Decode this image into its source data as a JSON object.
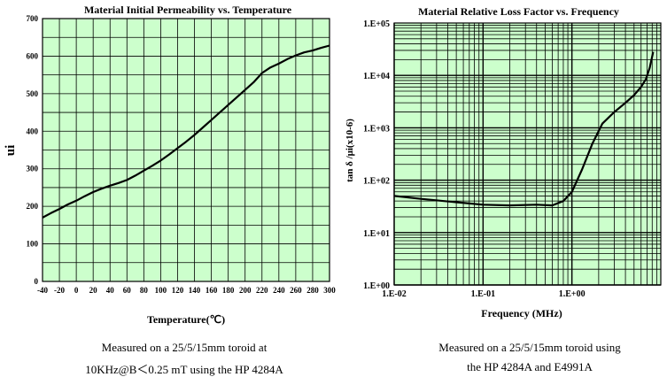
{
  "chart_data": [
    {
      "type": "line",
      "title": "Material Initial Permeability vs. Temperature",
      "xlabel": "Temperature(℃)",
      "ylabel": "ui",
      "xlim": [
        -40,
        300
      ],
      "ylim": [
        0,
        700
      ],
      "xticks": [
        -40,
        -20,
        0,
        20,
        40,
        60,
        80,
        100,
        120,
        140,
        160,
        180,
        200,
        220,
        240,
        260,
        280,
        300
      ],
      "yticks": [
        0,
        100,
        200,
        300,
        400,
        500,
        600,
        700
      ],
      "grid": true,
      "background": "#ccffcc",
      "line_color": "#000000",
      "series": [
        {
          "x": [
            -40,
            -30,
            -20,
            -10,
            0,
            10,
            20,
            30,
            40,
            50,
            60,
            70,
            80,
            90,
            100,
            110,
            120,
            130,
            140,
            150,
            160,
            170,
            180,
            190,
            200,
            210,
            220,
            230,
            240,
            250,
            260,
            270,
            280,
            290,
            300
          ],
          "y": [
            170,
            182,
            193,
            205,
            215,
            227,
            238,
            247,
            255,
            262,
            270,
            282,
            295,
            308,
            322,
            338,
            355,
            372,
            390,
            410,
            430,
            450,
            470,
            490,
            510,
            530,
            555,
            570,
            580,
            592,
            602,
            610,
            615,
            622,
            628
          ]
        }
      ],
      "caption": [
        "Measured on a 25/5/15mm toroid at",
        "10KHz@B＜0.25 mT using the HP 4284A"
      ]
    },
    {
      "type": "line",
      "title": "Material Relative Loss Factor vs. Frequency",
      "xlabel": "Frequency (MHz)",
      "ylabel": "tan δ /μi(x10-6)",
      "xscale": "log",
      "yscale": "log",
      "xlim": [
        0.01,
        10
      ],
      "ylim": [
        1,
        100000
      ],
      "xticks": [
        "1.E-02",
        "1.E-01",
        "1.E+00"
      ],
      "yticks": [
        "1.E+00",
        "1.E+01",
        "1.E+02",
        "1.E+03",
        "1.E+04",
        "1.E+05"
      ],
      "grid": true,
      "background": "#ccffcc",
      "line_color": "#000000",
      "series": [
        {
          "x": [
            0.01,
            0.02,
            0.05,
            0.1,
            0.2,
            0.4,
            0.6,
            0.8,
            1.0,
            1.3,
            1.7,
            2.2,
            3.0,
            4.0,
            5.0,
            6.0,
            6.8,
            7.5,
            8.2
          ],
          "y": [
            50,
            44,
            38,
            34,
            33,
            34,
            33,
            40,
            60,
            160,
            500,
            1200,
            2000,
            3000,
            4200,
            6000,
            8500,
            14000,
            28000
          ]
        }
      ],
      "caption": [
        "Measured on a 25/5/15mm toroid using",
        "the HP 4284A and E4991A"
      ]
    }
  ]
}
